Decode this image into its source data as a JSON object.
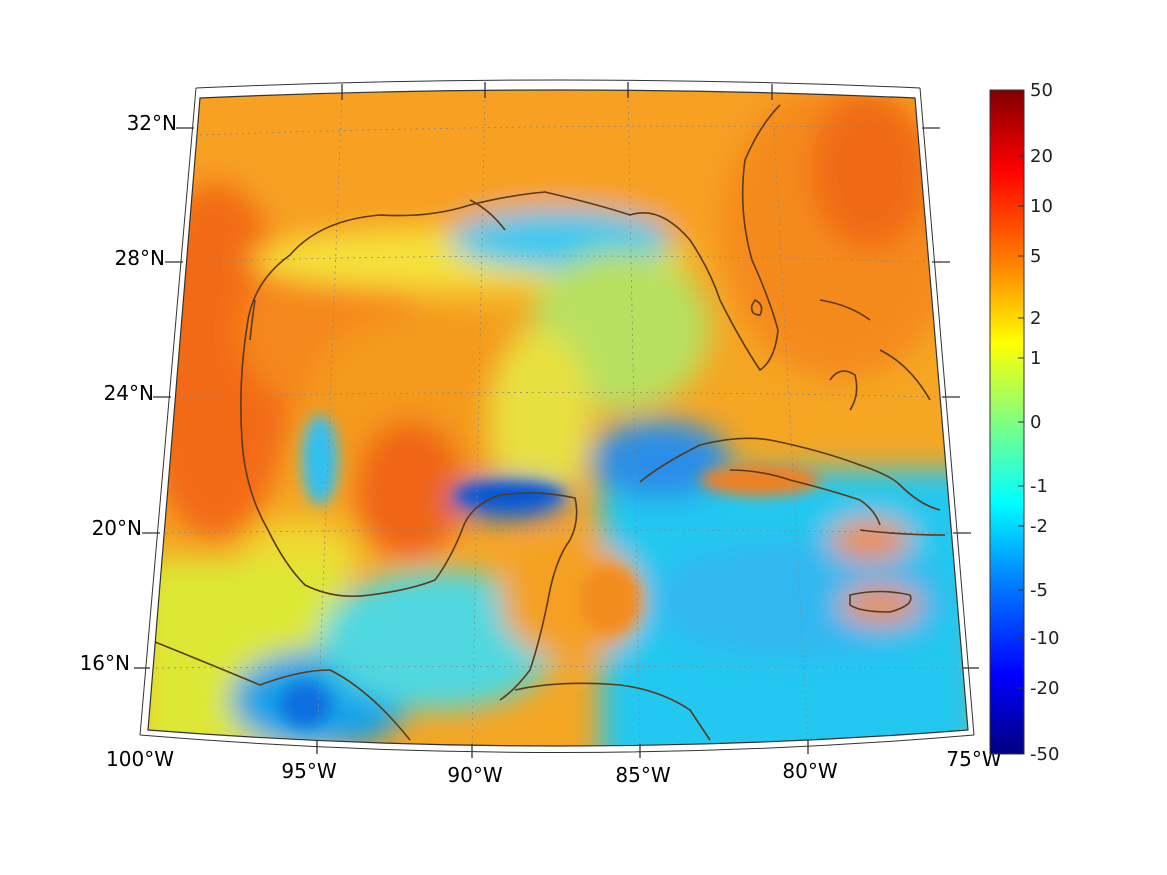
{
  "map": {
    "longitude_labels": [
      "100°W",
      "95°W",
      "90°W",
      "85°W",
      "80°W",
      "75°W"
    ],
    "latitude_labels": [
      "32°N",
      "28°N",
      "24°N",
      "20°N",
      "16°N"
    ],
    "extent": {
      "lon": [
        -100,
        -75
      ],
      "lat": [
        14,
        33
      ]
    },
    "coast_color": "#5a3a1a",
    "graticule_color": "#888888"
  },
  "colorbar": {
    "tick_labels": [
      "50",
      "20",
      "10",
      "5",
      "2",
      "1",
      "0",
      "-1",
      "-2",
      "-5",
      "-10",
      "-20",
      "-50"
    ],
    "colors": [
      "#800000",
      "#ff0000",
      "#ff8000",
      "#ffff00",
      "#80ff80",
      "#00ffff",
      "#0080ff",
      "#0000ff",
      "#000080"
    ]
  }
}
